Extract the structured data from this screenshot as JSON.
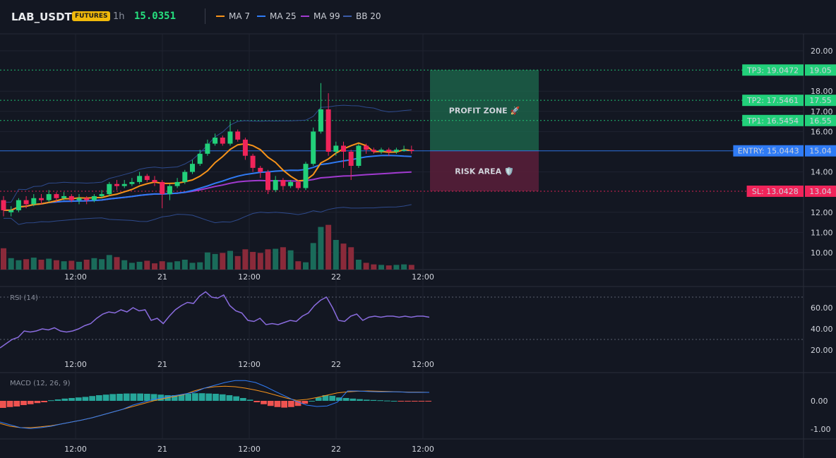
{
  "header": {
    "symbol": "LAB_USDT",
    "badge": "FUTURES",
    "timeframe": "1h",
    "last_price": "15.0351",
    "legend": [
      {
        "label": "MA 7",
        "color": "#f7931a"
      },
      {
        "label": "MA 25",
        "color": "#2f7bf5"
      },
      {
        "label": "MA 99",
        "color": "#a13ad0"
      },
      {
        "label": "BB 20",
        "color": "#3b5ba8"
      }
    ]
  },
  "colors": {
    "bg": "#131722",
    "up": "#22d07a",
    "down": "#f0245a",
    "grid": "#1f2330",
    "rsi": "#8a6cdf",
    "macd": "#2f7bf5",
    "signal": "#f7931a",
    "entry": "#2f7bf5",
    "tp": "#22d07a",
    "sl": "#f0245a"
  },
  "chart_data": {
    "type": "candlestick",
    "y_ticks": [
      "20.00",
      "18.00",
      "17.00",
      "16.00",
      "14.00",
      "12.00",
      "11.00",
      "10.00"
    ],
    "x_ticks": [
      "12:00",
      "21",
      "12:00",
      "22",
      "12:00"
    ],
    "ylim": [
      9.2,
      20.8
    ],
    "candles": [
      [
        12.6,
        12.1,
        12.8,
        11.8
      ],
      [
        12.0,
        12.1,
        12.3,
        11.8
      ],
      [
        12.1,
        12.6,
        12.7,
        12.0
      ],
      [
        12.6,
        12.4,
        12.8,
        12.2
      ],
      [
        12.4,
        12.7,
        12.9,
        12.3
      ],
      [
        12.7,
        12.6,
        12.9,
        12.4
      ],
      [
        12.6,
        12.9,
        13.1,
        12.5
      ],
      [
        12.9,
        12.7,
        13.0,
        12.5
      ],
      [
        12.7,
        12.8,
        13.0,
        12.6
      ],
      [
        12.8,
        12.6,
        12.9,
        12.5
      ],
      [
        12.6,
        12.7,
        12.9,
        12.4
      ],
      [
        12.7,
        12.6,
        12.8,
        12.4
      ],
      [
        12.6,
        12.8,
        12.9,
        12.5
      ],
      [
        12.8,
        12.9,
        13.1,
        12.7
      ],
      [
        12.9,
        13.4,
        13.5,
        12.8
      ],
      [
        13.4,
        13.3,
        13.6,
        13.1
      ],
      [
        13.3,
        13.4,
        13.6,
        13.2
      ],
      [
        13.4,
        13.5,
        13.7,
        13.3
      ],
      [
        13.5,
        13.8,
        14.0,
        13.4
      ],
      [
        13.8,
        13.6,
        13.9,
        13.5
      ],
      [
        13.6,
        13.5,
        13.8,
        13.3
      ],
      [
        13.5,
        12.9,
        13.6,
        12.2
      ],
      [
        12.9,
        13.3,
        13.4,
        12.6
      ],
      [
        13.3,
        13.5,
        13.7,
        13.2
      ],
      [
        13.5,
        14.0,
        14.1,
        13.4
      ],
      [
        14.0,
        14.4,
        14.6,
        13.9
      ],
      [
        14.4,
        14.9,
        15.1,
        14.3
      ],
      [
        14.9,
        15.4,
        15.6,
        14.8
      ],
      [
        15.4,
        15.7,
        15.9,
        15.3
      ],
      [
        15.7,
        15.4,
        15.8,
        15.3
      ],
      [
        15.4,
        16.0,
        16.5,
        15.3
      ],
      [
        16.0,
        15.6,
        16.1,
        15.5
      ],
      [
        15.6,
        14.8,
        15.7,
        14.6
      ],
      [
        14.8,
        14.2,
        14.9,
        14.0
      ],
      [
        14.2,
        14.0,
        14.3,
        13.7
      ],
      [
        14.0,
        13.1,
        14.1,
        12.9
      ],
      [
        13.1,
        13.6,
        13.8,
        13.0
      ],
      [
        13.6,
        13.3,
        13.7,
        13.1
      ],
      [
        13.3,
        13.5,
        13.6,
        13.2
      ],
      [
        13.5,
        13.2,
        13.6,
        13.1
      ],
      [
        13.2,
        14.4,
        14.5,
        13.1
      ],
      [
        14.4,
        16.0,
        16.2,
        14.3
      ],
      [
        16.0,
        17.1,
        18.4,
        15.9
      ],
      [
        17.1,
        15.0,
        17.9,
        14.8
      ],
      [
        15.0,
        15.3,
        15.5,
        14.8
      ],
      [
        15.3,
        15.0,
        15.5,
        14.2
      ],
      [
        15.0,
        14.3,
        15.1,
        13.6
      ],
      [
        14.3,
        15.3,
        15.4,
        14.2
      ],
      [
        15.3,
        15.1,
        15.4,
        14.9
      ],
      [
        15.1,
        15.0,
        15.2,
        14.9
      ],
      [
        15.0,
        15.1,
        15.2,
        14.9
      ],
      [
        15.1,
        15.0,
        15.2,
        14.8
      ],
      [
        15.0,
        15.1,
        15.2,
        14.9
      ],
      [
        15.1,
        15.1,
        15.3,
        15.0
      ],
      [
        15.1,
        15.04,
        15.3,
        14.9
      ]
    ],
    "volume": [
      4.1,
      2.2,
      1.8,
      2.0,
      2.3,
      1.9,
      2.1,
      1.8,
      1.6,
      1.7,
      1.5,
      1.9,
      2.2,
      2.0,
      2.8,
      2.4,
      1.8,
      1.3,
      1.5,
      1.7,
      1.2,
      1.6,
      1.4,
      1.6,
      1.9,
      1.3,
      1.4,
      3.3,
      3.0,
      3.2,
      3.6,
      2.6,
      3.9,
      3.4,
      3.2,
      3.9,
      4.0,
      4.3,
      3.7,
      1.6,
      1.4,
      5.1,
      8.2,
      8.6,
      5.7,
      5.0,
      4.3,
      1.9,
      1.3,
      1.0,
      0.9,
      0.8,
      0.9,
      1.0,
      0.9
    ],
    "levels": [
      {
        "label": "TP3: 19.0472",
        "price": 19.0472,
        "axis": "19.05",
        "kind": "tp"
      },
      {
        "label": "TP2: 17.5461",
        "price": 17.5461,
        "axis": "17.55",
        "kind": "tp"
      },
      {
        "label": "TP1: 16.5454",
        "price": 16.5454,
        "axis": "16.55",
        "kind": "tp"
      },
      {
        "label": "ENTRY: 15.0443",
        "price": 15.0443,
        "axis": "15.04",
        "kind": "entry"
      },
      {
        "label": "SL: 13.0428",
        "price": 13.0428,
        "axis": "13.04",
        "kind": "sl"
      }
    ],
    "zones": {
      "profit": {
        "label": "PROFIT ZONE 🚀",
        "from": 15.0443,
        "to": 19.0472
      },
      "risk": {
        "label": "RISK AREA 🛡️",
        "from": 13.0428,
        "to": 15.0443
      }
    }
  },
  "rsi": {
    "title": "RSI (14)",
    "ticks": [
      "60.00",
      "40.00",
      "20.00"
    ],
    "values": [
      22,
      26,
      30,
      32,
      38,
      37,
      38,
      40,
      39,
      41,
      38,
      37,
      38,
      40,
      43,
      45,
      50,
      54,
      56,
      55,
      58,
      56,
      60,
      57,
      58,
      48,
      50,
      45,
      52,
      58,
      62,
      65,
      64,
      71,
      75,
      70,
      69,
      72,
      62,
      57,
      55,
      48,
      47,
      50,
      44,
      45,
      44,
      46,
      48,
      47,
      52,
      55,
      62,
      67,
      70,
      60,
      48,
      47,
      52,
      54,
      48,
      51,
      52,
      51,
      52,
      52,
      51,
      52,
      51,
      52,
      52,
      51
    ]
  },
  "macd": {
    "title": "MACD (12, 26, 9)",
    "ticks": [
      "0.00",
      "-1.00"
    ],
    "hist": [
      -0.25,
      -0.22,
      -0.2,
      -0.15,
      -0.12,
      -0.08,
      -0.05,
      0.02,
      0.05,
      0.08,
      0.1,
      0.12,
      0.14,
      0.17,
      0.2,
      0.22,
      0.24,
      0.25,
      0.26,
      0.26,
      0.26,
      0.25,
      0.24,
      0.22,
      0.2,
      0.2,
      0.22,
      0.25,
      0.27,
      0.27,
      0.26,
      0.25,
      0.23,
      0.2,
      0.16,
      0.1,
      0.04,
      -0.05,
      -0.12,
      -0.18,
      -0.22,
      -0.24,
      -0.22,
      -0.18,
      -0.1,
      0.0,
      0.12,
      0.2,
      0.18,
      0.12,
      0.1,
      0.08,
      0.06,
      0.04,
      0.03,
      0.02,
      0.01,
      0.0,
      -0.01,
      -0.02,
      -0.02,
      -0.02,
      -0.02
    ],
    "macd_line": [
      -0.75,
      -0.85,
      -0.95,
      -0.98,
      -0.95,
      -0.9,
      -0.82,
      -0.75,
      -0.68,
      -0.6,
      -0.5,
      -0.4,
      -0.3,
      -0.15,
      -0.05,
      0.05,
      0.12,
      0.18,
      0.24,
      0.3,
      0.45,
      0.55,
      0.65,
      0.72,
      0.72,
      0.65,
      0.5,
      0.32,
      0.15,
      -0.02,
      -0.15,
      -0.2,
      -0.18,
      -0.05,
      0.35,
      0.35,
      0.33,
      0.32,
      0.32,
      0.32,
      0.3,
      0.3,
      0.3
    ],
    "signal_line": [
      -0.8,
      -0.9,
      -0.95,
      -0.95,
      -0.92,
      -0.88,
      -0.82,
      -0.75,
      -0.68,
      -0.6,
      -0.5,
      -0.4,
      -0.3,
      -0.2,
      -0.1,
      0.0,
      0.08,
      0.15,
      0.22,
      0.35,
      0.45,
      0.5,
      0.52,
      0.5,
      0.45,
      0.38,
      0.3,
      0.2,
      0.1,
      0.02,
      0.05,
      0.12,
      0.2,
      0.28,
      0.32,
      0.34,
      0.35,
      0.34,
      0.33,
      0.32,
      0.31,
      0.31,
      0.3
    ]
  }
}
